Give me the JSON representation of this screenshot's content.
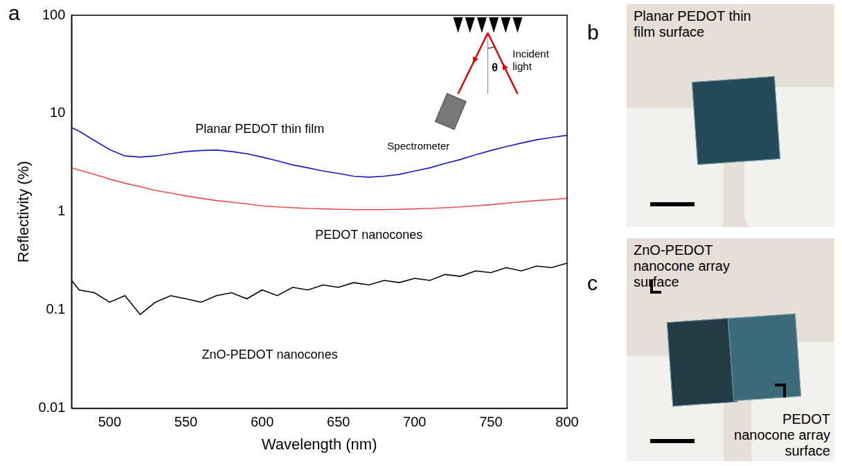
{
  "chart_data": {
    "type": "line",
    "panel": "a",
    "x_label": "Wavelength (nm)",
    "y_label": "Reflectivity (%)",
    "log": "y",
    "grid": false,
    "xlim": [
      475,
      800
    ],
    "ylim": [
      0.01,
      100
    ],
    "xticks": [
      500,
      550,
      600,
      650,
      700,
      750,
      800
    ],
    "yticks": [
      0.01,
      0.1,
      1,
      10,
      100
    ],
    "x": [
      475,
      480,
      490,
      500,
      510,
      520,
      530,
      540,
      550,
      560,
      570,
      580,
      590,
      600,
      610,
      620,
      630,
      640,
      650,
      660,
      670,
      680,
      690,
      700,
      710,
      720,
      730,
      740,
      750,
      760,
      770,
      780,
      790,
      800
    ],
    "series": [
      {
        "name": "Planar PEDOT thin film",
        "color": "#1c1cb8",
        "values": [
          7.2,
          6.6,
          5.3,
          4.3,
          3.7,
          3.6,
          3.7,
          3.9,
          4.1,
          4.2,
          4.25,
          4.1,
          3.9,
          3.6,
          3.3,
          3.0,
          2.8,
          2.6,
          2.45,
          2.3,
          2.25,
          2.3,
          2.4,
          2.6,
          2.8,
          3.1,
          3.4,
          3.8,
          4.2,
          4.6,
          5.0,
          5.4,
          5.7,
          6.0
        ]
      },
      {
        "name": "PEDOT nanocones",
        "color": "#e8504f",
        "values": [
          2.8,
          2.65,
          2.4,
          2.15,
          1.95,
          1.8,
          1.65,
          1.55,
          1.45,
          1.37,
          1.3,
          1.25,
          1.2,
          1.15,
          1.12,
          1.1,
          1.08,
          1.07,
          1.06,
          1.05,
          1.05,
          1.05,
          1.06,
          1.07,
          1.08,
          1.1,
          1.12,
          1.15,
          1.18,
          1.22,
          1.26,
          1.3,
          1.33,
          1.37
        ]
      },
      {
        "name": "ZnO-PEDOT nanocones",
        "color": "#000000",
        "values": [
          0.2,
          0.16,
          0.15,
          0.12,
          0.14,
          0.09,
          0.12,
          0.14,
          0.13,
          0.12,
          0.14,
          0.15,
          0.13,
          0.16,
          0.14,
          0.17,
          0.16,
          0.18,
          0.17,
          0.19,
          0.18,
          0.2,
          0.19,
          0.21,
          0.2,
          0.23,
          0.22,
          0.25,
          0.24,
          0.27,
          0.25,
          0.28,
          0.27,
          0.3
        ]
      }
    ],
    "inset": {
      "incident": "Incident light",
      "detector": "Spectrometer",
      "angle": "θ"
    }
  },
  "photos": [
    {
      "panel": "b",
      "labels": [
        "Planar PEDOT thin film surface"
      ]
    },
    {
      "panel": "c",
      "labels": [
        "ZnO-PEDOT nanocone array surface",
        "PEDOT nanocone array surface"
      ]
    }
  ]
}
